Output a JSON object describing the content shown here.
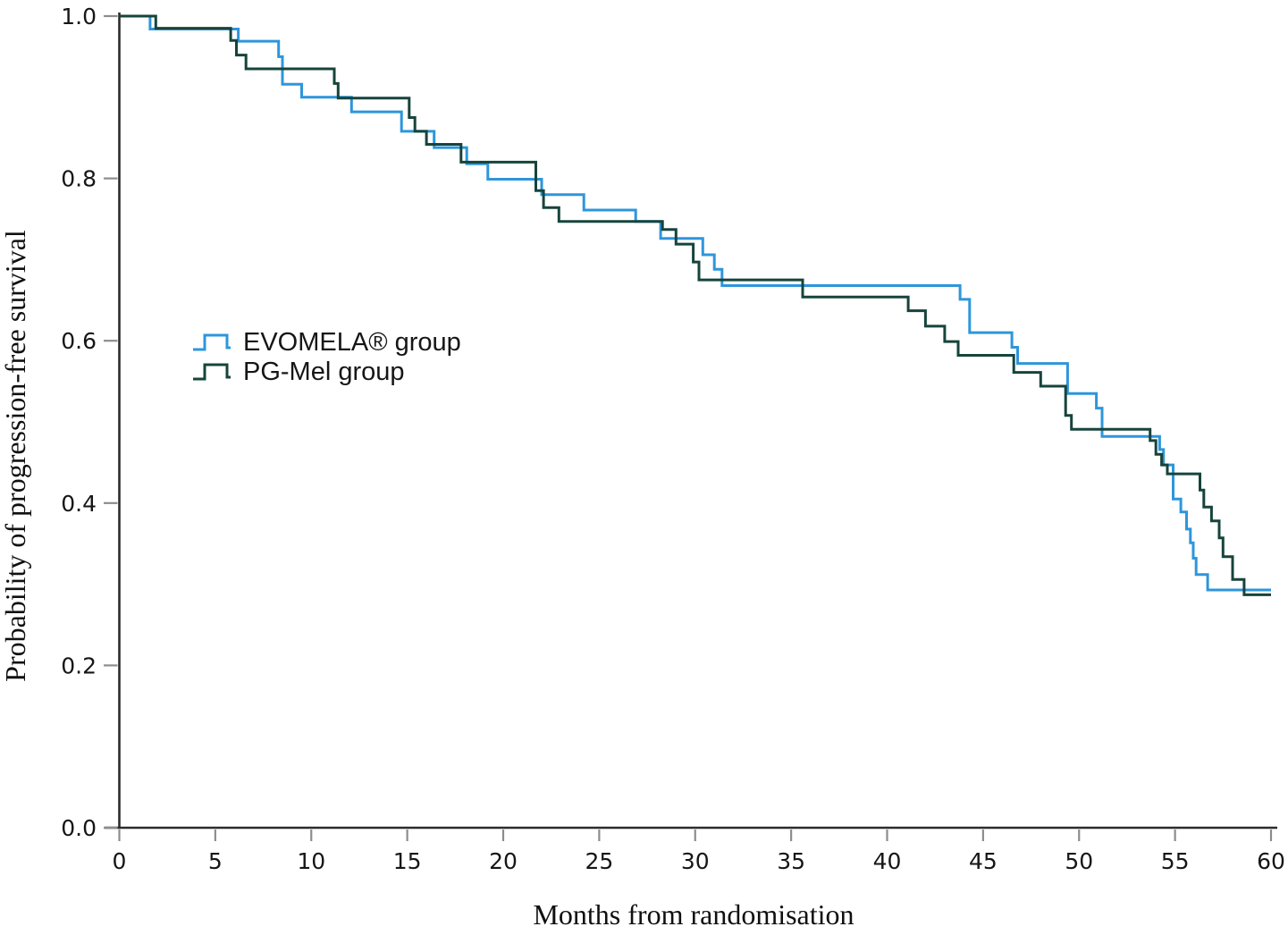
{
  "chart_data": {
    "type": "line",
    "subtype": "kaplan_meier_step",
    "title": "",
    "xlabel": "Months from randomisation",
    "ylabel": "Probability of progression-free survival",
    "xlim": [
      0,
      60
    ],
    "ylim": [
      0.0,
      1.0
    ],
    "x_ticks": [
      0,
      5,
      10,
      15,
      20,
      25,
      30,
      35,
      40,
      45,
      50,
      55,
      60
    ],
    "y_ticks": [
      "0.0",
      "0.2",
      "0.4",
      "0.6",
      "0.8",
      "1.0"
    ],
    "grid": false,
    "legend_position": "inside-left-middle",
    "axis_color": "#2b2b2b",
    "tick_color": "#8d8d8d",
    "series": [
      {
        "name": "EVOMELA® group",
        "color": "#2D96DB",
        "end_time": 60,
        "points": [
          [
            0,
            1.0
          ],
          [
            1.6,
            0.984
          ],
          [
            6.2,
            0.969
          ],
          [
            8.3,
            0.95
          ],
          [
            8.5,
            0.916
          ],
          [
            9.5,
            0.9
          ],
          [
            12.1,
            0.882
          ],
          [
            14.7,
            0.858
          ],
          [
            16.4,
            0.838
          ],
          [
            18.1,
            0.818
          ],
          [
            19.2,
            0.799
          ],
          [
            22.0,
            0.78
          ],
          [
            24.2,
            0.761
          ],
          [
            26.9,
            0.747
          ],
          [
            28.2,
            0.726
          ],
          [
            30.4,
            0.706
          ],
          [
            31.0,
            0.688
          ],
          [
            31.4,
            0.668
          ],
          [
            43.8,
            0.651
          ],
          [
            44.3,
            0.61
          ],
          [
            46.5,
            0.592
          ],
          [
            46.8,
            0.572
          ],
          [
            49.4,
            0.535
          ],
          [
            50.9,
            0.517
          ],
          [
            51.2,
            0.482
          ],
          [
            54.2,
            0.466
          ],
          [
            54.4,
            0.447
          ],
          [
            54.9,
            0.405
          ],
          [
            55.3,
            0.389
          ],
          [
            55.6,
            0.368
          ],
          [
            55.8,
            0.351
          ],
          [
            55.95,
            0.332
          ],
          [
            56.1,
            0.312
          ],
          [
            56.7,
            0.293
          ]
        ]
      },
      {
        "name": "PG-Mel group",
        "color": "#16443B",
        "end_time": 60,
        "points": [
          [
            0,
            1.0
          ],
          [
            1.9,
            0.985
          ],
          [
            5.8,
            0.97
          ],
          [
            6.1,
            0.952
          ],
          [
            6.6,
            0.935
          ],
          [
            11.2,
            0.917
          ],
          [
            11.4,
            0.899
          ],
          [
            15.1,
            0.875
          ],
          [
            15.4,
            0.858
          ],
          [
            16.0,
            0.842
          ],
          [
            17.8,
            0.82
          ],
          [
            21.7,
            0.785
          ],
          [
            22.1,
            0.764
          ],
          [
            22.9,
            0.747
          ],
          [
            28.3,
            0.737
          ],
          [
            29.0,
            0.719
          ],
          [
            29.9,
            0.697
          ],
          [
            30.2,
            0.675
          ],
          [
            35.6,
            0.654
          ],
          [
            41.1,
            0.637
          ],
          [
            42.0,
            0.618
          ],
          [
            43.0,
            0.599
          ],
          [
            43.7,
            0.582
          ],
          [
            46.6,
            0.561
          ],
          [
            48.0,
            0.544
          ],
          [
            49.3,
            0.508
          ],
          [
            49.6,
            0.491
          ],
          [
            53.7,
            0.477
          ],
          [
            54.0,
            0.46
          ],
          [
            54.3,
            0.447
          ],
          [
            54.6,
            0.436
          ],
          [
            56.3,
            0.416
          ],
          [
            56.5,
            0.395
          ],
          [
            56.9,
            0.378
          ],
          [
            57.3,
            0.357
          ],
          [
            57.5,
            0.334
          ],
          [
            58.0,
            0.306
          ],
          [
            58.6,
            0.287
          ]
        ]
      }
    ]
  }
}
